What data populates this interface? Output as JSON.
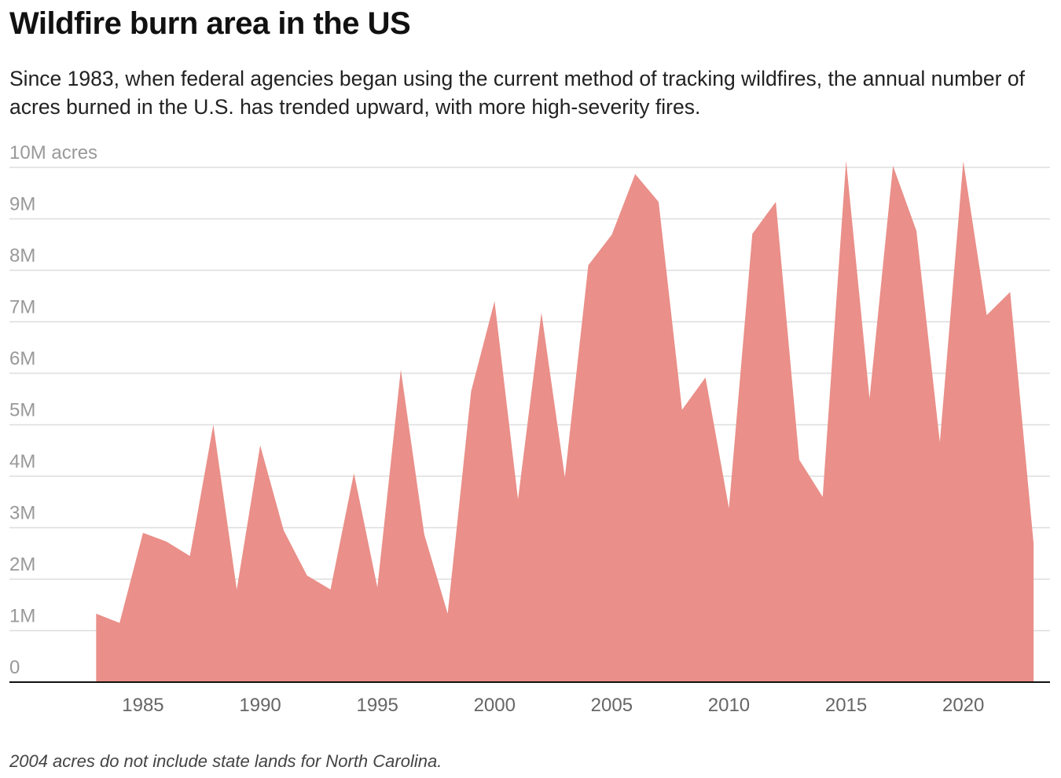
{
  "chart_data": {
    "type": "area",
    "title": "Wildfire burn area in the US",
    "subtitle": "Since 1983, when federal agencies began using the current method of tracking wildfires, the annual number of acres burned in the U.S. has trended upward, with more high-severity fires.",
    "note": "2004 acres do not include state lands for North Carolina.",
    "x": [
      1983,
      1984,
      1985,
      1986,
      1987,
      1988,
      1989,
      1990,
      1991,
      1992,
      1993,
      1994,
      1995,
      1996,
      1997,
      1998,
      1999,
      2000,
      2001,
      2002,
      2003,
      2004,
      2005,
      2006,
      2007,
      2008,
      2009,
      2010,
      2011,
      2012,
      2013,
      2014,
      2015,
      2016,
      2017,
      2018,
      2019,
      2020,
      2021,
      2022,
      2023
    ],
    "values": [
      1330000,
      1150000,
      2900000,
      2730000,
      2450000,
      5000000,
      1800000,
      4600000,
      2950000,
      2070000,
      1800000,
      4060000,
      1840000,
      6070000,
      2870000,
      1330000,
      5650000,
      7400000,
      3550000,
      7180000,
      3980000,
      8100000,
      8690000,
      9870000,
      9330000,
      5290000,
      5920000,
      3380000,
      8710000,
      9330000,
      4320000,
      3600000,
      10130000,
      5510000,
      10030000,
      8770000,
      4660000,
      10120000,
      7130000,
      7580000,
      2690000
    ],
    "color": "#ea8f89",
    "xlim": [
      1979.3,
      2023.7
    ],
    "xticks": [
      1985,
      1990,
      1995,
      2000,
      2005,
      2010,
      2015,
      2020
    ],
    "ylim": [
      0,
      10000000
    ],
    "yticks": [
      {
        "value": 0,
        "label": "0"
      },
      {
        "value": 1000000,
        "label": "1M"
      },
      {
        "value": 2000000,
        "label": "2M"
      },
      {
        "value": 3000000,
        "label": "3M"
      },
      {
        "value": 4000000,
        "label": "4M"
      },
      {
        "value": 5000000,
        "label": "5M"
      },
      {
        "value": 6000000,
        "label": "6M"
      },
      {
        "value": 7000000,
        "label": "7M"
      },
      {
        "value": 8000000,
        "label": "8M"
      },
      {
        "value": 9000000,
        "label": "9M"
      },
      {
        "value": 10000000,
        "label": "10M acres"
      }
    ],
    "grid": true
  }
}
